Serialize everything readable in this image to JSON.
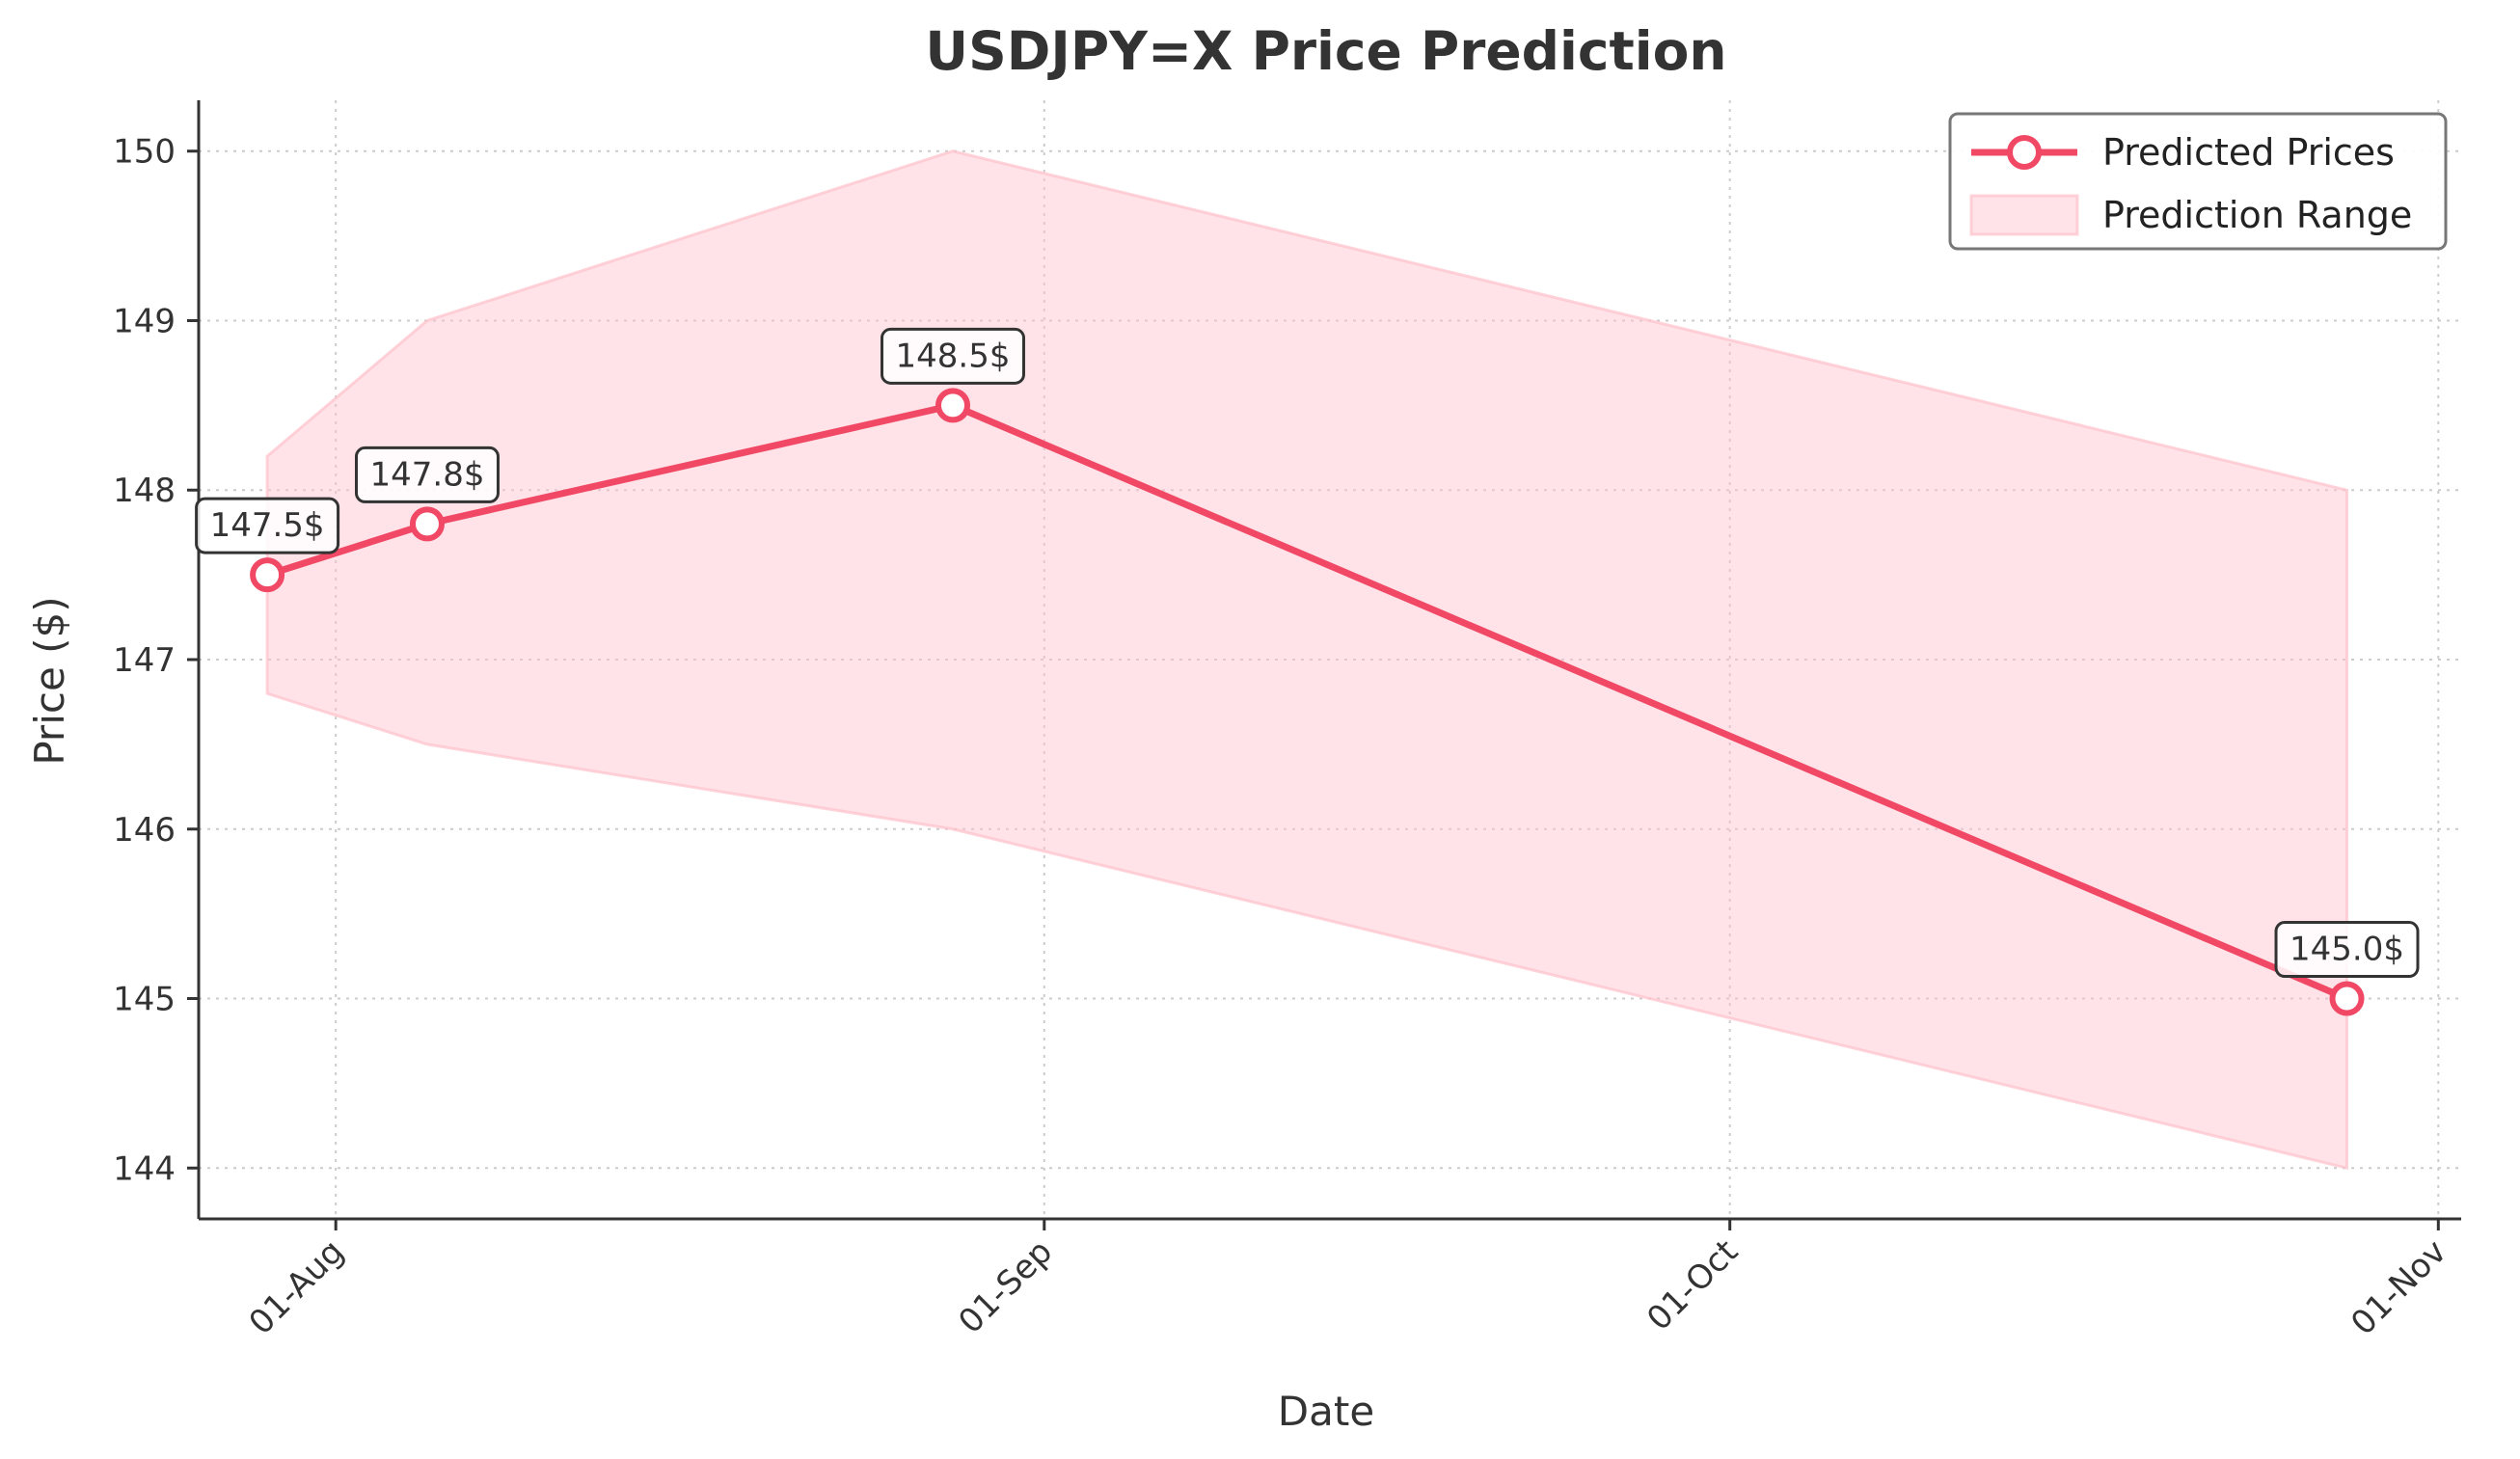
{
  "chart_data": {
    "type": "line",
    "title": "USDJPY=X Price Prediction",
    "xlabel": "Date",
    "ylabel": "Price ($)",
    "ylim": [
      143.7,
      150.3
    ],
    "xlim": [
      "2024-07-26",
      "2024-11-02"
    ],
    "x_ticks": [
      {
        "date": "2024-08-01",
        "label": "01-Aug"
      },
      {
        "date": "2024-09-01",
        "label": "01-Sep"
      },
      {
        "date": "2024-10-01",
        "label": "01-Oct"
      },
      {
        "date": "2024-11-01",
        "label": "01-Nov"
      }
    ],
    "y_ticks": [
      144,
      145,
      146,
      147,
      148,
      149,
      150
    ],
    "grid": true,
    "legend_position": "top-right",
    "colors": {
      "line": "#f04865",
      "band": "#ffc0cb",
      "axis": "#333333",
      "grid": "#cccccc"
    },
    "series": [
      {
        "name": "Predicted Prices",
        "x": [
          "2024-07-29",
          "2024-08-05",
          "2024-08-28",
          "2024-10-28"
        ],
        "values": [
          147.5,
          147.8,
          148.5,
          145.0
        ],
        "labels": [
          "147.5$",
          "147.8$",
          "148.5$",
          "145.0$"
        ]
      }
    ],
    "range": {
      "name": "Prediction Range",
      "x": [
        "2024-07-29",
        "2024-08-05",
        "2024-08-28",
        "2024-10-28"
      ],
      "lower": [
        146.8,
        146.5,
        146.0,
        144.0
      ],
      "upper": [
        148.2,
        149.0,
        150.0,
        148.0
      ]
    }
  }
}
